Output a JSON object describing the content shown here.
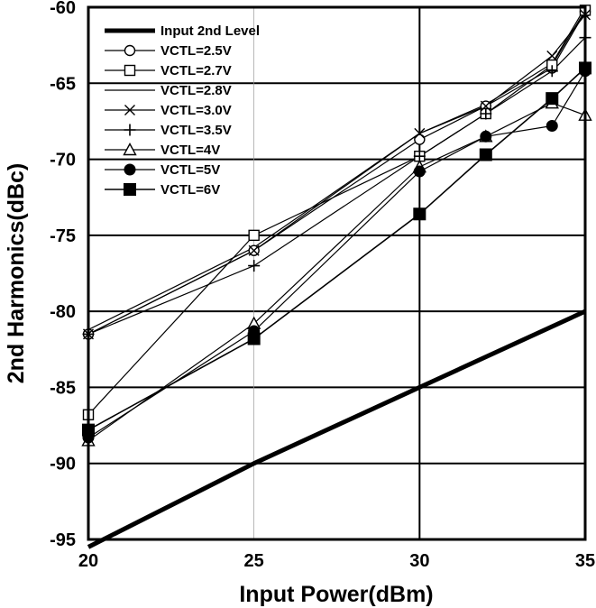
{
  "chart_data": {
    "type": "line",
    "title": "",
    "xlabel": "Input Power(dBm)",
    "ylabel": "2nd Harmonics(dBc)",
    "xlim": [
      20,
      35
    ],
    "ylim": [
      -95,
      -60
    ],
    "xticks": [
      "20",
      "25",
      "30",
      "35"
    ],
    "yticks": [
      "-60",
      "-65",
      "-70",
      "-75",
      "-80",
      "-85",
      "-90",
      "-95"
    ],
    "legend_position": "top-left",
    "series": [
      {
        "name": "Input 2nd Level",
        "marker": "none",
        "linewidth": 5,
        "points": [
          [
            20,
            -95.5
          ],
          [
            25,
            -90
          ],
          [
            30,
            -85
          ],
          [
            35,
            -80
          ]
        ]
      },
      {
        "name": "VCTL=2.5V",
        "marker": "open-circle",
        "linewidth": 1.2,
        "points": [
          [
            20,
            -81.5
          ],
          [
            25,
            -76
          ],
          [
            30,
            -68.7
          ],
          [
            32,
            -66.5
          ],
          [
            34,
            -64
          ],
          [
            35,
            -60.3
          ]
        ]
      },
      {
        "name": "VCTL=2.7V",
        "marker": "open-square",
        "linewidth": 1.2,
        "points": [
          [
            20,
            -86.8
          ],
          [
            25,
            -75
          ],
          [
            30,
            -69.8
          ],
          [
            32,
            -67
          ],
          [
            34,
            -63.8
          ],
          [
            35,
            -60.2
          ]
        ]
      },
      {
        "name": "VCTL=2.8V",
        "marker": "none",
        "linewidth": 1.2,
        "points": [
          [
            20,
            -81.2
          ],
          [
            25,
            -75.8
          ],
          [
            30,
            -68.3
          ],
          [
            32,
            -66.4
          ],
          [
            34,
            -63.7
          ],
          [
            35,
            -60
          ]
        ]
      },
      {
        "name": "VCTL=3.0V",
        "marker": "cross",
        "linewidth": 1.2,
        "points": [
          [
            20,
            -81.5
          ],
          [
            25,
            -76
          ],
          [
            30,
            -68.3
          ],
          [
            32,
            -66.5
          ],
          [
            34,
            -63.2
          ],
          [
            35,
            -60.5
          ]
        ]
      },
      {
        "name": "VCTL=3.5V",
        "marker": "plus",
        "linewidth": 1.2,
        "points": [
          [
            20,
            -81.5
          ],
          [
            25,
            -77
          ],
          [
            30,
            -69.8
          ],
          [
            32,
            -67
          ],
          [
            34,
            -64.2
          ],
          [
            35,
            -62
          ]
        ]
      },
      {
        "name": "VCTL=4V",
        "marker": "open-triangle",
        "linewidth": 1.2,
        "points": [
          [
            20,
            -88.5
          ],
          [
            25,
            -80.8
          ],
          [
            30,
            -70.5
          ],
          [
            32,
            -68.5
          ],
          [
            34,
            -66.3
          ],
          [
            35,
            -67.1
          ]
        ]
      },
      {
        "name": "VCTL=5V",
        "marker": "filled-circle",
        "linewidth": 1.2,
        "points": [
          [
            20,
            -88.3
          ],
          [
            25,
            -81.3
          ],
          [
            30,
            -70.8
          ],
          [
            32,
            -68.5
          ],
          [
            34,
            -67.8
          ],
          [
            35,
            -64.2
          ]
        ]
      },
      {
        "name": "VCTL=6V",
        "marker": "filled-square",
        "linewidth": 1.6,
        "points": [
          [
            20,
            -87.8
          ],
          [
            25,
            -81.8
          ],
          [
            30,
            -73.6
          ],
          [
            32,
            -69.7
          ],
          [
            34,
            -66
          ],
          [
            35,
            -64
          ]
        ]
      }
    ]
  }
}
